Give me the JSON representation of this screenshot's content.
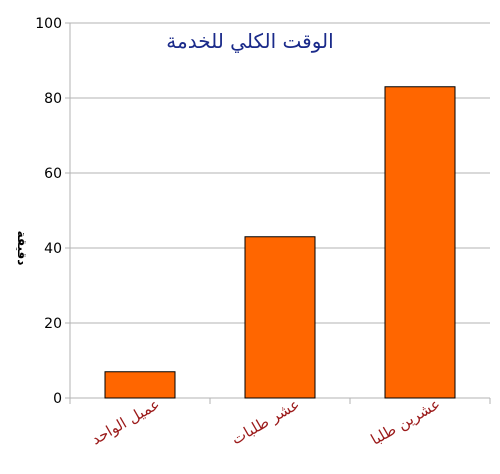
{
  "chart_data": {
    "type": "bar",
    "title": "الوقت الكلي للخدمة",
    "xlabel": "",
    "ylabel": "دقيقة",
    "categories": [
      "عميل الواحد",
      "عشر طلبات",
      "عشرين طلبا"
    ],
    "values": [
      7,
      43,
      83
    ],
    "ylim": [
      0,
      100
    ],
    "yticks": [
      0,
      20,
      40,
      60,
      80,
      100
    ],
    "grid": true,
    "legend": "none",
    "bar_color": "#ff6600",
    "bar_stroke": "#000000",
    "title_color": "#1a2a8a",
    "category_label_color": "#9b1a1a",
    "grid_color": "#b3b3b3"
  }
}
